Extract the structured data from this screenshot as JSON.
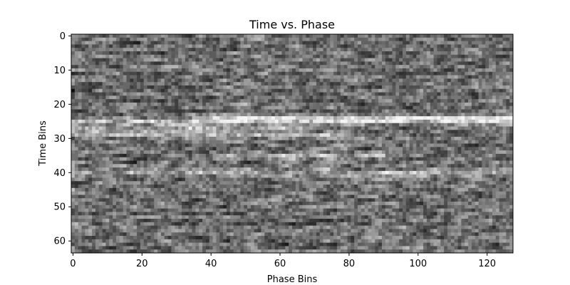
{
  "chart_data": {
    "type": "heatmap",
    "title": "Time vs. Phase",
    "xlabel": "Phase Bins",
    "ylabel": "Time Bins",
    "colormap": "gray",
    "n_cols": 128,
    "n_rows": 64,
    "xlim": [
      -0.5,
      127.5
    ],
    "ylim": [
      63.5,
      -0.5
    ],
    "x_ticks": [
      0,
      20,
      40,
      60,
      80,
      100,
      120
    ],
    "y_ticks": [
      0,
      10,
      20,
      30,
      40,
      50,
      60
    ],
    "bright_rows": [
      {
        "row": 24,
        "phase_range": [
          35,
          127
        ],
        "strength": 0.45
      },
      {
        "row": 25,
        "phase_range": [
          0,
          127
        ],
        "strength": 0.35
      },
      {
        "row": 27,
        "phase_range": [
          0,
          70
        ],
        "strength": 0.35
      },
      {
        "row": 29,
        "phase_range": [
          0,
          80
        ],
        "strength": 0.3
      },
      {
        "row": 35,
        "phase_range": [
          40,
          90
        ],
        "strength": 0.3
      },
      {
        "row": 40,
        "phase_range": [
          0,
          127
        ],
        "strength": 0.3
      }
    ]
  }
}
